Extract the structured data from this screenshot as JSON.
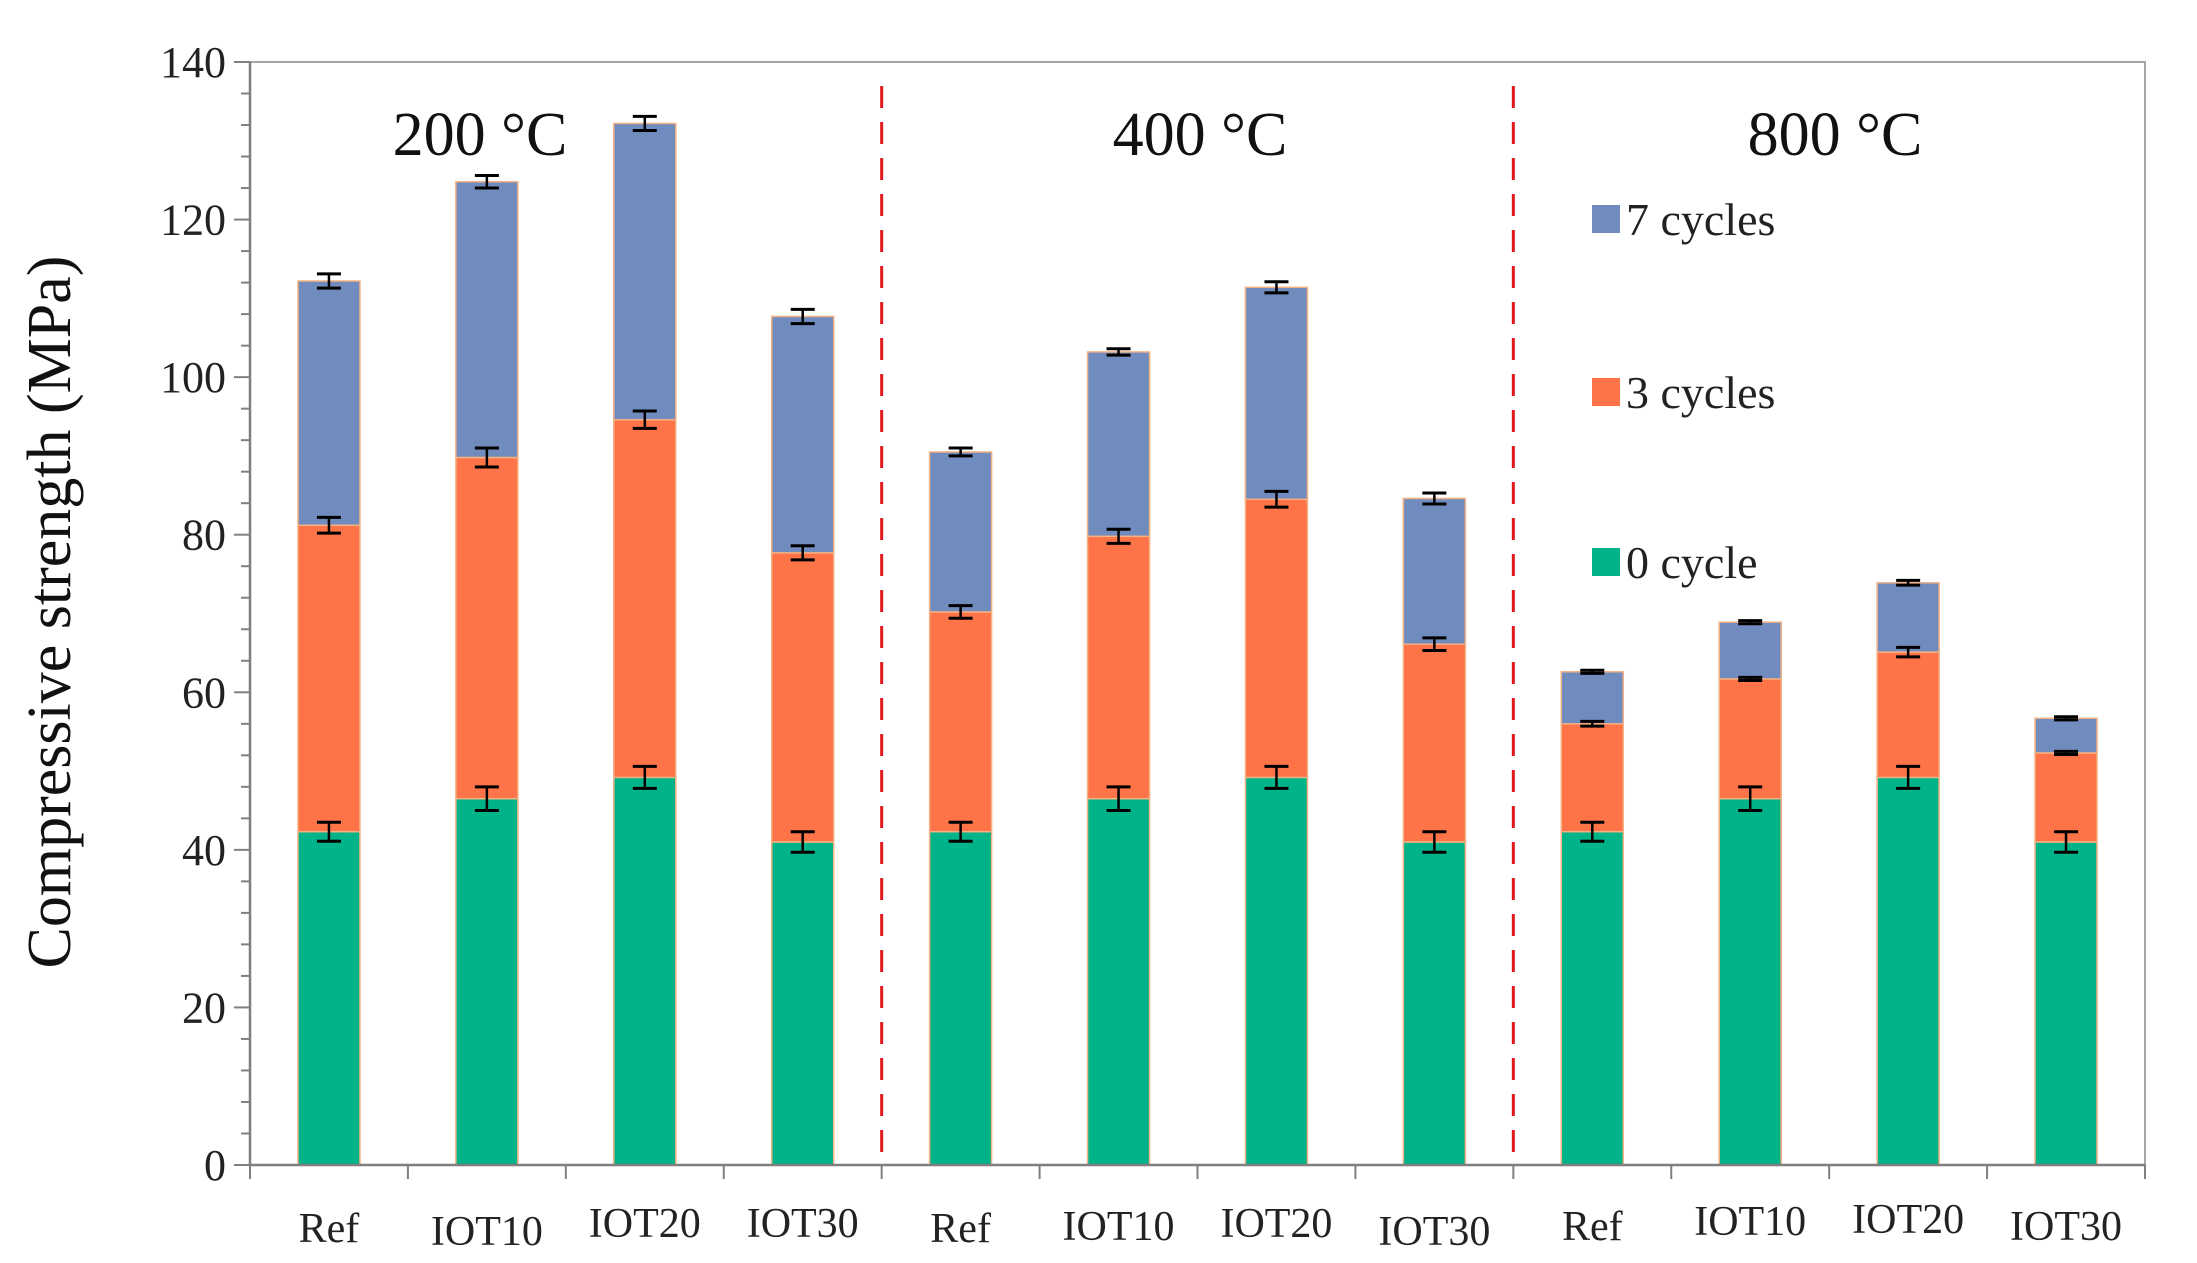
{
  "chart_data": {
    "type": "bar",
    "stacked": true,
    "title": "",
    "xlabel": "",
    "ylabel": "Compressive strength (MPa)",
    "ylim": [
      0,
      140
    ],
    "ytick_step": 20,
    "yticks": [
      "0",
      "20",
      "40",
      "60",
      "80",
      "100",
      "120",
      "140"
    ],
    "groups": [
      "200 °C",
      "400 °C",
      "800 °C"
    ],
    "categories": [
      "Ref",
      "IOT10",
      "IOT20",
      "IOT30",
      "Ref",
      "IOT10",
      "IOT20",
      "IOT30",
      "Ref",
      "IOT10",
      "IOT20",
      "IOT30"
    ],
    "series": [
      {
        "name": "0 cycle",
        "color": "#00b388",
        "values": [
          42.3,
          46.5,
          49.2,
          41.0,
          42.3,
          46.5,
          49.2,
          41.0,
          42.3,
          46.5,
          49.2,
          41.0
        ],
        "errors": [
          1.2,
          1.5,
          1.4,
          1.3,
          1.2,
          1.5,
          1.4,
          1.3,
          1.2,
          1.5,
          1.4,
          1.3
        ]
      },
      {
        "name": "3 cycles",
        "color": "#fe7448",
        "values": [
          38.9,
          43.3,
          45.4,
          36.7,
          27.9,
          33.3,
          35.3,
          25.1,
          13.7,
          15.2,
          15.9,
          11.3
        ],
        "errors": [
          1.0,
          1.2,
          1.1,
          0.9,
          0.8,
          0.9,
          1.0,
          0.8,
          0.3,
          0.2,
          0.6,
          0.2
        ]
      },
      {
        "name": "7 cycles",
        "color": "#708bbd",
        "values": [
          31.0,
          35.0,
          37.6,
          30.0,
          20.3,
          23.4,
          26.9,
          18.5,
          6.6,
          7.2,
          8.8,
          4.4
        ],
        "errors": [
          0.9,
          0.8,
          0.9,
          0.9,
          0.5,
          0.4,
          0.7,
          0.7,
          0.2,
          0.2,
          0.3,
          0.2
        ]
      }
    ],
    "legend": [
      "7 cycles",
      "3 cycles",
      "0 cycle"
    ],
    "legend_position": "right",
    "separators": "dashed red lines between temperature groups"
  }
}
